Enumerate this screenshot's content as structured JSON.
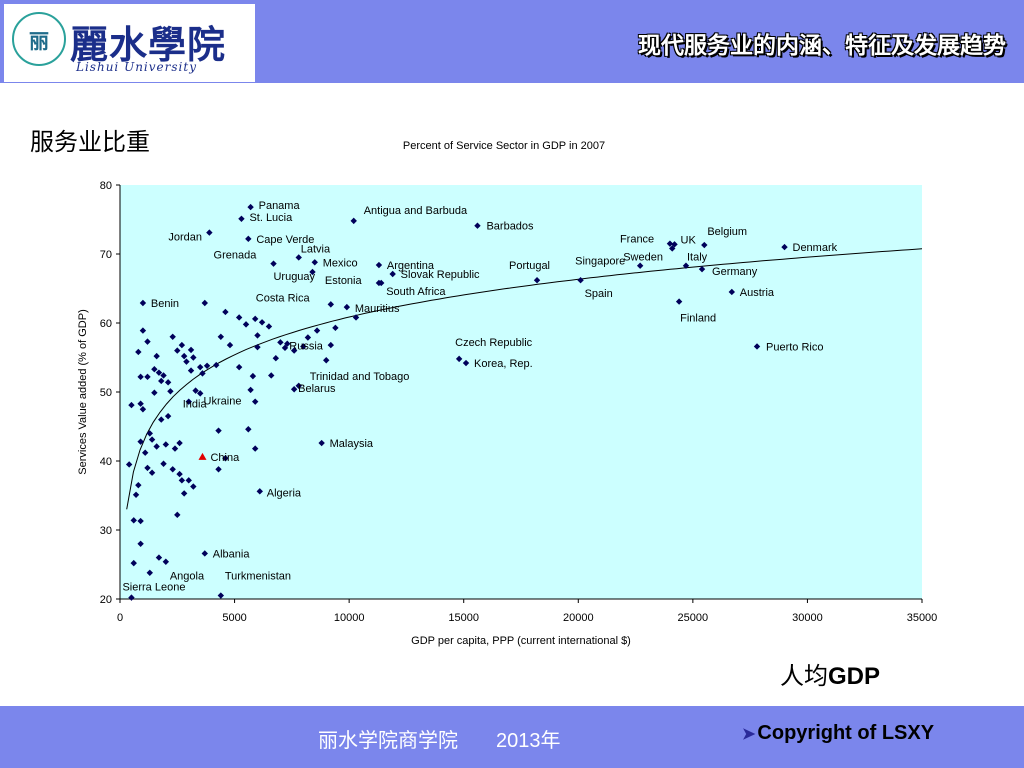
{
  "header": {
    "logo_emblem_text": "丽",
    "logo_cn": "麗水學院",
    "logo_en": "Lishui University",
    "title": "现代服务业的内涵、特征及发展趋势",
    "band_color": "#7b86ec"
  },
  "side_label": "服务业比重",
  "bottom_label_cn": "人均",
  "bottom_label_en": "GDP",
  "footer": {
    "text": "丽水学院商学院",
    "year": "2013年",
    "copyright": "Copyright of LSXY"
  },
  "chart_data": {
    "type": "scatter",
    "title": "Percent of Service Sector  in GDP in 2007",
    "xlabel": "GDP per capita, PPP (current international $)",
    "ylabel": "Services Value added (% of GDP)",
    "xlim": [
      0,
      35000
    ],
    "ylim": [
      20,
      80
    ],
    "xticks": [
      0,
      5000,
      10000,
      15000,
      20000,
      25000,
      30000,
      35000
    ],
    "yticks": [
      20,
      30,
      40,
      50,
      60,
      70,
      80
    ],
    "plot_bg": "#ccffff",
    "point_color": "#00005a",
    "highlight_color": "#e00000",
    "grid": false,
    "trendline": {
      "type": "logarithmic",
      "a": 7.9,
      "b": -11.9
    },
    "labeled_points": [
      {
        "name": "Panama",
        "x": 5700,
        "y": 76.8
      },
      {
        "name": "St. Lucia",
        "x": 5300,
        "y": 75.1
      },
      {
        "name": "Antigua and Barbuda",
        "x": 10200,
        "y": 74.8
      },
      {
        "name": "Barbados",
        "x": 15600,
        "y": 74.1
      },
      {
        "name": "Jordan",
        "x": 3900,
        "y": 73.1
      },
      {
        "name": "Cape Verde",
        "x": 5600,
        "y": 72.2
      },
      {
        "name": "France",
        "x": 24000,
        "y": 71.5
      },
      {
        "name": "UK",
        "x": 24200,
        "y": 71.4
      },
      {
        "name": "Belgium",
        "x": 25500,
        "y": 71.3
      },
      {
        "name": "Denmark",
        "x": 29000,
        "y": 71.0
      },
      {
        "name": "Sweden",
        "x": 24100,
        "y": 70.8
      },
      {
        "name": "Latvia",
        "x": 7800,
        "y": 69.5
      },
      {
        "name": "Grenada",
        "x": 6700,
        "y": 68.6
      },
      {
        "name": "Mexico",
        "x": 8500,
        "y": 68.8
      },
      {
        "name": "Argentina",
        "x": 11300,
        "y": 68.4
      },
      {
        "name": "Singapore",
        "x": 22700,
        "y": 68.3
      },
      {
        "name": "Italy",
        "x": 24700,
        "y": 68.3
      },
      {
        "name": "Portugal",
        "x": 18200,
        "y": 66.2
      },
      {
        "name": "Germany",
        "x": 25400,
        "y": 67.8
      },
      {
        "name": "Uruguay",
        "x": 8400,
        "y": 67.4
      },
      {
        "name": "Slovak Republic",
        "x": 11900,
        "y": 67.1
      },
      {
        "name": "Estonia",
        "x": 11300,
        "y": 65.8
      },
      {
        "name": "South Africa",
        "x": 11400,
        "y": 65.8
      },
      {
        "name": "Spain",
        "x": 20100,
        "y": 66.2
      },
      {
        "name": "Austria",
        "x": 26700,
        "y": 64.5
      },
      {
        "name": "Benin",
        "x": 1000,
        "y": 62.9
      },
      {
        "name": "Costa Rica",
        "x": 9200,
        "y": 62.7
      },
      {
        "name": "Mauritius",
        "x": 9900,
        "y": 62.3
      },
      {
        "name": "Finland",
        "x": 24400,
        "y": 63.1
      },
      {
        "name": "Czech Republic",
        "x": 14800,
        "y": 54.8
      },
      {
        "name": "Korea, Rep.",
        "x": 15100,
        "y": 54.2
      },
      {
        "name": "Puerto Rico",
        "x": 27800,
        "y": 56.6
      },
      {
        "name": "Russia",
        "x": 7300,
        "y": 57.0
      },
      {
        "name": "Trinidad and Tobago",
        "x": 7800,
        "y": 50.9
      },
      {
        "name": "Belarus",
        "x": 7600,
        "y": 50.4
      },
      {
        "name": "India",
        "x": 3000,
        "y": 48.6
      },
      {
        "name": "Ukraine",
        "x": 4300,
        "y": 44.4
      },
      {
        "name": "Malaysia",
        "x": 8800,
        "y": 42.6
      },
      {
        "name": "China",
        "x": 3600,
        "y": 40.6,
        "highlight": true
      },
      {
        "name": "Algeria",
        "x": 6100,
        "y": 35.6
      },
      {
        "name": "Albania",
        "x": 3700,
        "y": 26.6
      },
      {
        "name": "Angola",
        "x": 2000,
        "y": 25.4
      },
      {
        "name": "Turkmenistan",
        "x": 4400,
        "y": 20.5
      },
      {
        "name": "Sierra Leone",
        "x": 500,
        "y": 20.2
      }
    ],
    "other_points": [
      [
        3700,
        62.9
      ],
      [
        4600,
        61.6
      ],
      [
        5200,
        60.8
      ],
      [
        5500,
        59.8
      ],
      [
        5900,
        60.6
      ],
      [
        6200,
        60.1
      ],
      [
        6500,
        59.5
      ],
      [
        8600,
        58.9
      ],
      [
        9400,
        59.3
      ],
      [
        10300,
        60.8
      ],
      [
        4400,
        58.0
      ],
      [
        6000,
        58.2
      ],
      [
        7000,
        57.2
      ],
      [
        7600,
        56.0
      ],
      [
        9200,
        56.8
      ],
      [
        8000,
        56.6
      ],
      [
        9000,
        54.6
      ],
      [
        5200,
        53.6
      ],
      [
        5800,
        52.3
      ],
      [
        6600,
        52.4
      ],
      [
        5700,
        50.3
      ],
      [
        5900,
        48.6
      ],
      [
        5600,
        44.6
      ],
      [
        5900,
        41.8
      ],
      [
        4600,
        40.4
      ],
      [
        4300,
        38.8
      ],
      [
        3800,
        53.8
      ],
      [
        3500,
        53.6
      ],
      [
        3200,
        55.0
      ],
      [
        3100,
        56.1
      ],
      [
        2900,
        54.4
      ],
      [
        2700,
        56.8
      ],
      [
        2500,
        56.0
      ],
      [
        2300,
        58.0
      ],
      [
        1600,
        55.2
      ],
      [
        1500,
        53.3
      ],
      [
        1200,
        52.2
      ],
      [
        1900,
        52.4
      ],
      [
        2100,
        51.4
      ],
      [
        1800,
        51.6
      ],
      [
        800,
        55.8
      ],
      [
        1000,
        58.9
      ],
      [
        500,
        48.1
      ],
      [
        900,
        48.3
      ],
      [
        1100,
        41.2
      ],
      [
        1400,
        38.3
      ],
      [
        1900,
        39.6
      ],
      [
        2300,
        38.8
      ],
      [
        2600,
        38.1
      ],
      [
        2400,
        41.8
      ],
      [
        2700,
        37.2
      ],
      [
        3000,
        37.2
      ],
      [
        3200,
        36.3
      ],
      [
        2800,
        35.3
      ],
      [
        2500,
        32.2
      ],
      [
        1600,
        42.1
      ],
      [
        2000,
        42.4
      ],
      [
        1400,
        43.1
      ],
      [
        900,
        42.8
      ],
      [
        400,
        39.5
      ],
      [
        800,
        36.5
      ],
      [
        700,
        35.1
      ],
      [
        600,
        31.4
      ],
      [
        900,
        31.3
      ],
      [
        900,
        28.0
      ],
      [
        1300,
        23.8
      ],
      [
        1700,
        26.0
      ],
      [
        600,
        25.2
      ],
      [
        3300,
        50.2
      ],
      [
        3500,
        49.8
      ],
      [
        2100,
        46.5
      ],
      [
        1300,
        44.0
      ],
      [
        2600,
        42.6
      ],
      [
        1000,
        47.5
      ],
      [
        1800,
        46.0
      ],
      [
        1500,
        49.9
      ],
      [
        2200,
        50.1
      ],
      [
        1700,
        52.8
      ],
      [
        2800,
        55.2
      ],
      [
        1200,
        57.3
      ],
      [
        3100,
        53.1
      ],
      [
        900,
        52.2
      ],
      [
        6000,
        56.5
      ],
      [
        7200,
        56.4
      ],
      [
        8200,
        57.9
      ],
      [
        4200,
        53.9
      ],
      [
        4800,
        56.8
      ],
      [
        6800,
        54.9
      ],
      [
        3600,
        52.7
      ],
      [
        1200,
        39.0
      ]
    ]
  }
}
